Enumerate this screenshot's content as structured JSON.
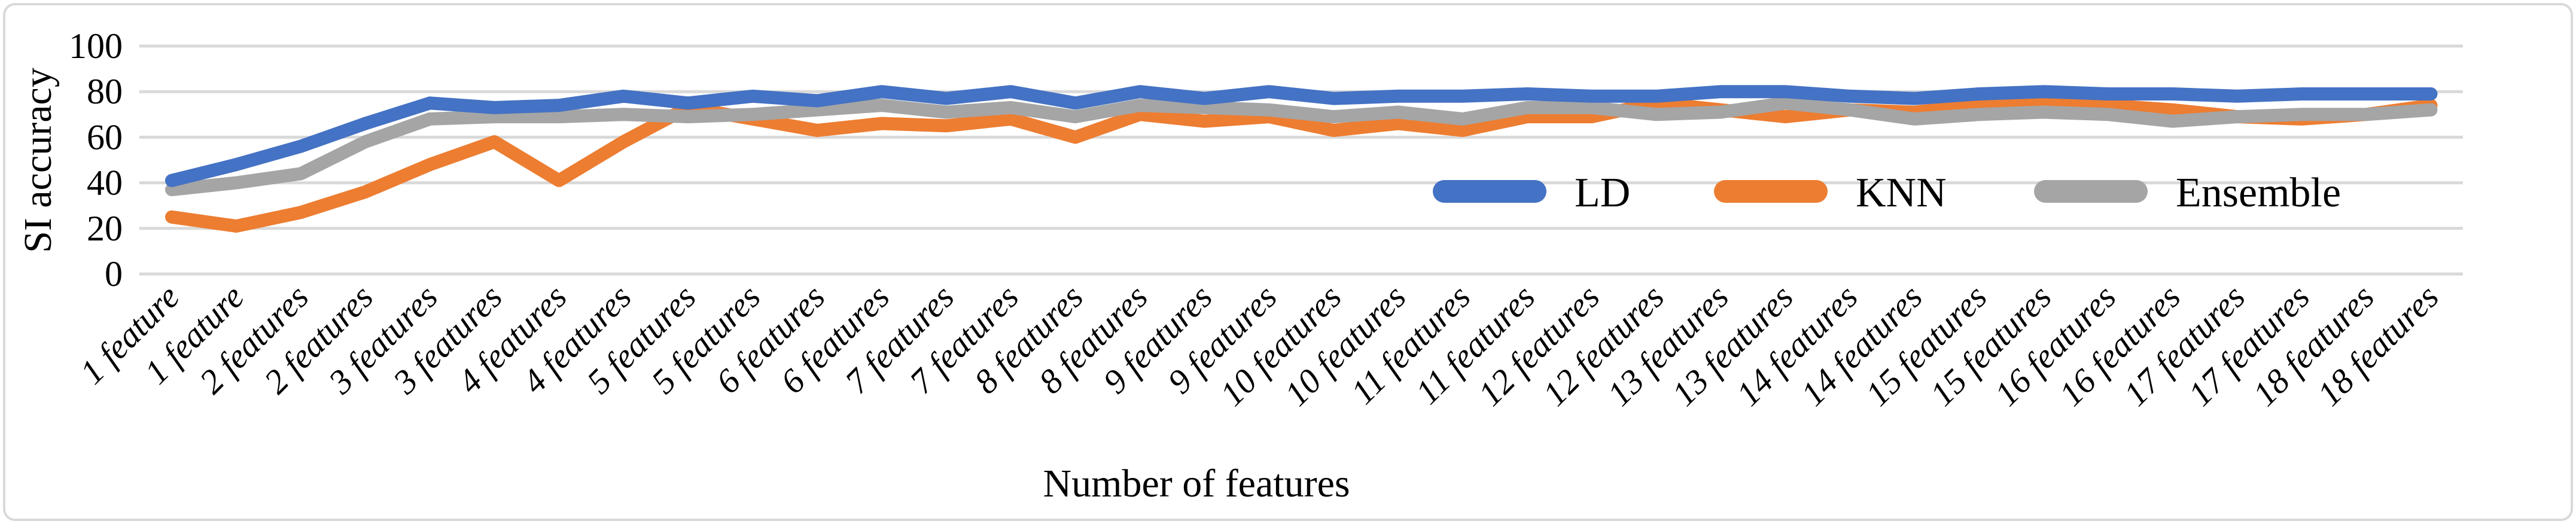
{
  "chart_data": {
    "type": "line",
    "title": "",
    "xlabel": "Number of features",
    "ylabel": "SI accuracy",
    "ylim": [
      0,
      100
    ],
    "yticks": [
      0,
      20,
      40,
      60,
      80,
      100
    ],
    "grid": true,
    "legend_position": "inside-right-middle",
    "colors": {
      "ld": "#4472C4",
      "knn": "#ED7D31",
      "ensemble": "#A5A5A5",
      "gridline": "#D9D9D9",
      "frame_border": "#D9D9D9",
      "text": "#000000"
    },
    "categories": [
      "1 feature",
      "1 feature",
      "2 features",
      "2 features",
      "3 features",
      "3 features",
      "4 features",
      "4 features",
      "5 features",
      "5 features",
      "6 features",
      "6 features",
      "7 features",
      "7 features",
      "8 features",
      "8 features",
      "9 features",
      "9 features",
      "10 features",
      "10 features",
      "11 features",
      "11 features",
      "12 features",
      "12 features",
      "13 features",
      "13 features",
      "14 features",
      "14 features",
      "15 features",
      "15 features",
      "16 features",
      "16 features",
      "17 features",
      "17 features",
      "18 features",
      "18 features"
    ],
    "series": [
      {
        "name": "KNN",
        "color": "#ED7D31",
        "values": [
          25,
          21,
          27,
          36,
          48,
          58,
          41,
          58,
          73,
          68,
          63,
          66,
          65,
          68,
          60,
          70,
          67,
          69,
          63,
          66,
          63,
          69,
          69,
          75,
          72,
          69,
          72,
          71,
          74,
          75,
          74,
          72,
          69,
          68,
          70,
          74
        ]
      },
      {
        "name": "Ensemble",
        "color": "#A5A5A5",
        "values": [
          37,
          40,
          44,
          58,
          68,
          69,
          69,
          70,
          69,
          70,
          72,
          74,
          71,
          73,
          69,
          74,
          73,
          72,
          69,
          71,
          68,
          73,
          73,
          70,
          71,
          75,
          72,
          68,
          70,
          71,
          70,
          67,
          69,
          70,
          70,
          72
        ]
      },
      {
        "name": "LD",
        "color": "#4472C4",
        "values": [
          41,
          48,
          56,
          66,
          75,
          73,
          74,
          78,
          75,
          78,
          76,
          80,
          77,
          80,
          75,
          80,
          77,
          80,
          77,
          78,
          78,
          79,
          78,
          78,
          80,
          80,
          78,
          77,
          79,
          80,
          79,
          79,
          78,
          79,
          79,
          79
        ]
      }
    ],
    "legend_order": [
      "LD",
      "KNN",
      "Ensemble"
    ]
  }
}
